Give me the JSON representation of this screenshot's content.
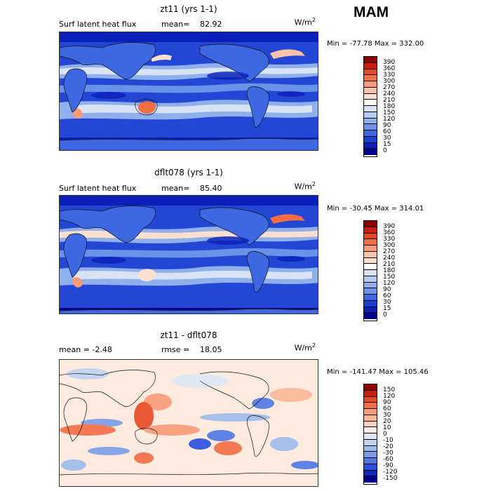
{
  "season": "MAM",
  "panels": [
    {
      "title": "zt11 (yrs 1-1)",
      "left_label": "Surf latent heat flux",
      "mean_label": "mean=",
      "mean_value": "82.92",
      "units": "W/m",
      "units_exp": "2",
      "minmax": "Min = -77.78 Max = 332.00"
    },
    {
      "title": "dflt078 (yrs 1-1)",
      "left_label": "Surf latent heat flux",
      "mean_label": "mean=",
      "mean_value": "85.40",
      "units": "W/m",
      "units_exp": "2",
      "minmax": "Min = -30.45 Max = 314.01"
    },
    {
      "title": "zt11 - dflt078",
      "left_label": "mean =   -2.48",
      "mean_label": "rmse =",
      "mean_value": "18.05",
      "units": "W/m",
      "units_exp": "2",
      "minmax": "Min = -141.47 Max = 105.46"
    }
  ],
  "colorbars": {
    "absolute": {
      "labels": [
        "390",
        "360",
        "330",
        "300",
        "270",
        "240",
        "210",
        "180",
        "150",
        "120",
        "90",
        "60",
        "30",
        "15",
        "0"
      ],
      "colors": [
        "#8b0000",
        "#c81e0e",
        "#e64a22",
        "#f46d43",
        "#f99b77",
        "#fcc3a8",
        "#fde0cf",
        "#ffffff",
        "#d8e4f6",
        "#b4ccf2",
        "#8fb0ed",
        "#6a92e8",
        "#3d68e2",
        "#1a3fd8",
        "#0a1fb8",
        "#00008b"
      ]
    },
    "difference": {
      "labels": [
        "150",
        "120",
        "90",
        "60",
        "30",
        "20",
        "10",
        "0",
        "-10",
        "-20",
        "-30",
        "-60",
        "-90",
        "-120",
        "-150"
      ],
      "colors": [
        "#8b0000",
        "#c81e0e",
        "#e64a22",
        "#f46d43",
        "#f99b77",
        "#fcb797",
        "#fdd5c0",
        "#fdebe0",
        "#dde8f7",
        "#bfd3f2",
        "#9dbbed",
        "#7a9de8",
        "#4f78e3",
        "#2a4fdc",
        "#1026b8",
        "#00008b"
      ]
    }
  },
  "chart_data": [
    {
      "type": "heatmap",
      "title": "zt11 (yrs 1-1)",
      "variable": "Surf latent heat flux",
      "units": "W/m2",
      "mean": 82.92,
      "min": -77.78,
      "max": 332.0,
      "levels": [
        0,
        15,
        30,
        60,
        90,
        120,
        150,
        180,
        210,
        240,
        270,
        300,
        330,
        360,
        390
      ],
      "projection": "cylindrical equidistant, Pacific-centered"
    },
    {
      "type": "heatmap",
      "title": "dflt078 (yrs 1-1)",
      "variable": "Surf latent heat flux",
      "units": "W/m2",
      "mean": 85.4,
      "min": -30.45,
      "max": 314.01,
      "levels": [
        0,
        15,
        30,
        60,
        90,
        120,
        150,
        180,
        210,
        240,
        270,
        300,
        330,
        360,
        390
      ],
      "projection": "cylindrical equidistant, Pacific-centered"
    },
    {
      "type": "heatmap",
      "title": "zt11 - dflt078",
      "units": "W/m2",
      "mean": -2.48,
      "rmse": 18.05,
      "min": -141.47,
      "max": 105.46,
      "levels": [
        -150,
        -120,
        -90,
        -60,
        -30,
        -20,
        -10,
        0,
        10,
        20,
        30,
        60,
        90,
        120,
        150
      ],
      "projection": "cylindrical equidistant, Pacific-centered"
    }
  ]
}
